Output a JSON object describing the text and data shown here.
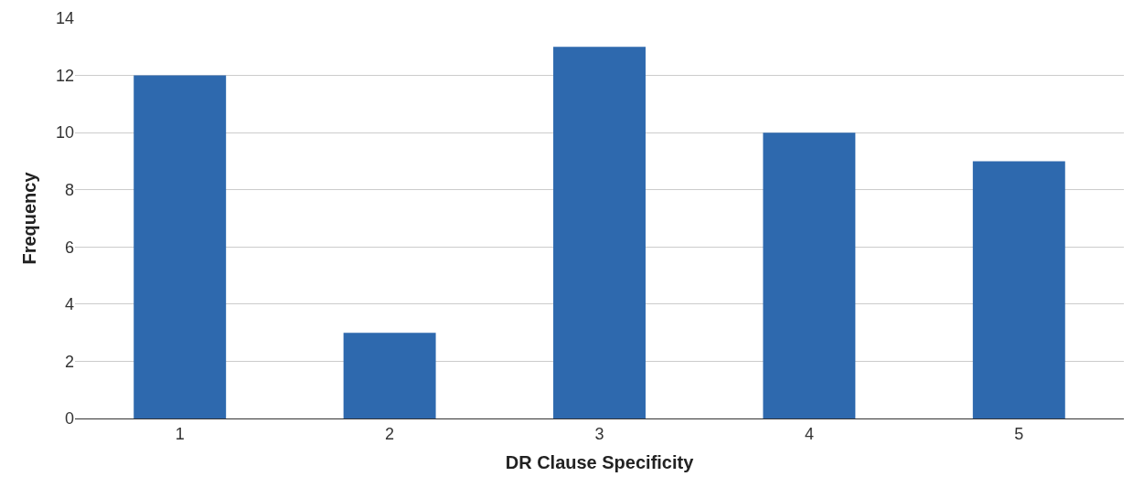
{
  "chart_data": {
    "type": "bar",
    "xlabel": "DR Clause Specificity",
    "ylabel": "Frequency",
    "categories": [
      "1",
      "2",
      "3",
      "4",
      "5"
    ],
    "values": [
      12,
      3,
      13,
      10,
      9
    ],
    "color": "#2e69ae",
    "ylim": [
      0,
      14
    ],
    "yticks": [
      0,
      2,
      4,
      6,
      8,
      10,
      12,
      14
    ],
    "grid": "y",
    "legend": false
  }
}
